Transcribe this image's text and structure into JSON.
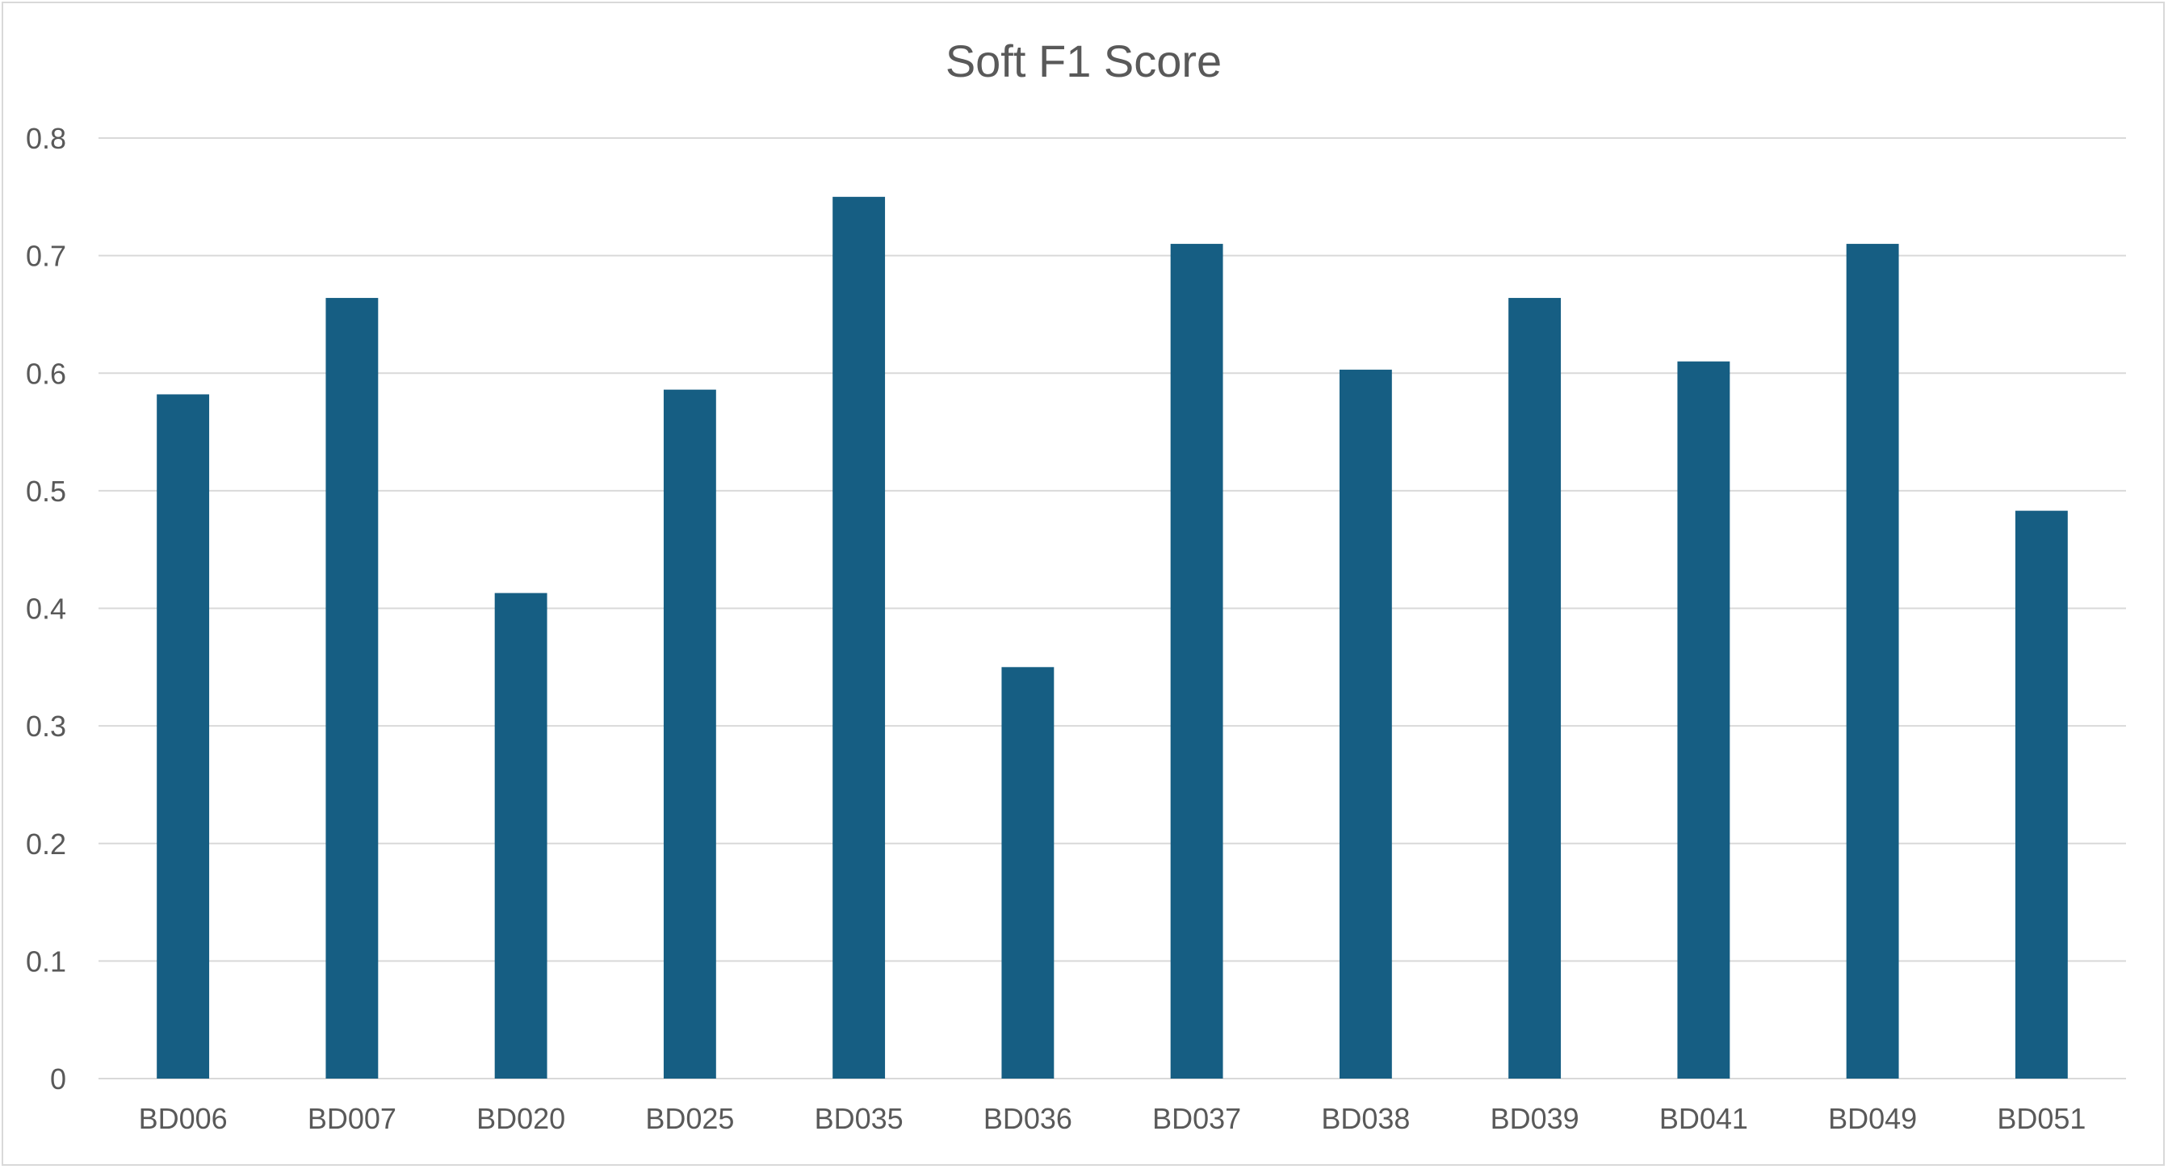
{
  "chart_data": {
    "type": "bar",
    "title": "Soft F1 Score",
    "xlabel": "",
    "ylabel": "",
    "categories": [
      "BD006",
      "BD007",
      "BD020",
      "BD025",
      "BD035",
      "BD036",
      "BD037",
      "BD038",
      "BD039",
      "BD041",
      "BD049",
      "BD051"
    ],
    "values": [
      0.582,
      0.664,
      0.413,
      0.586,
      0.75,
      0.35,
      0.71,
      0.603,
      0.664,
      0.61,
      0.71,
      0.483
    ],
    "ylim": [
      0,
      0.8
    ],
    "yticks": [
      0,
      0.1,
      0.2,
      0.3,
      0.4,
      0.5,
      0.6,
      0.7,
      0.8
    ],
    "ytick_labels": [
      "0",
      "0.1",
      "0.2",
      "0.3",
      "0.4",
      "0.5",
      "0.6",
      "0.7",
      "0.8"
    ],
    "grid": true,
    "legend": "none",
    "bar_color": "#165E83",
    "gridline_color": "#d9d9d9",
    "axis_color": "#d9d9d9",
    "text_color": "#595959"
  }
}
